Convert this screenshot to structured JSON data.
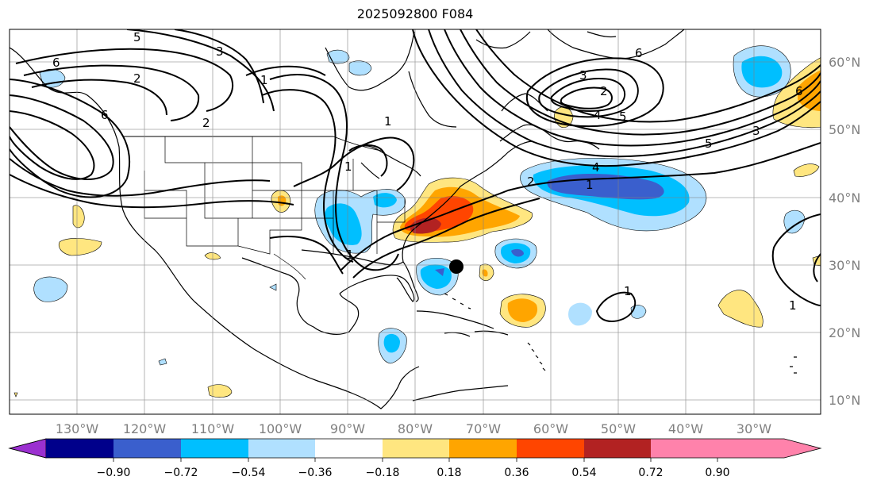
{
  "title": "2025092800 F084",
  "lon_ticks": [
    "130°W",
    "120°W",
    "110°W",
    "100°W",
    "90°W",
    "80°W",
    "70°W",
    "60°W",
    "50°W",
    "40°W",
    "30°W"
  ],
  "lat_ticks": [
    "60°N",
    "50°N",
    "40°N",
    "30°N",
    "20°N",
    "10°N"
  ],
  "colorbar": {
    "tick_labels": [
      "−0.90",
      "−0.72",
      "−0.54",
      "−0.36",
      "−0.18",
      "0.18",
      "0.36",
      "0.54",
      "0.72",
      "0.90"
    ],
    "colors": [
      "#9b30d0",
      "#00008b",
      "#3a5fcd",
      "#00bfff",
      "#b0e0ff",
      "#ffffff",
      "#ffe680",
      "#ffa500",
      "#ff4500",
      "#b22222",
      "#ff82ab"
    ]
  },
  "contour_labels": [
    "5",
    "6",
    "3",
    "2",
    "2",
    "6",
    "1",
    "1",
    "1",
    "1",
    "1",
    "6",
    "5",
    "3",
    "2",
    "4",
    "5",
    "3",
    "6",
    "4",
    "1",
    "2",
    "1"
  ],
  "marker": "storm-center-dot"
}
